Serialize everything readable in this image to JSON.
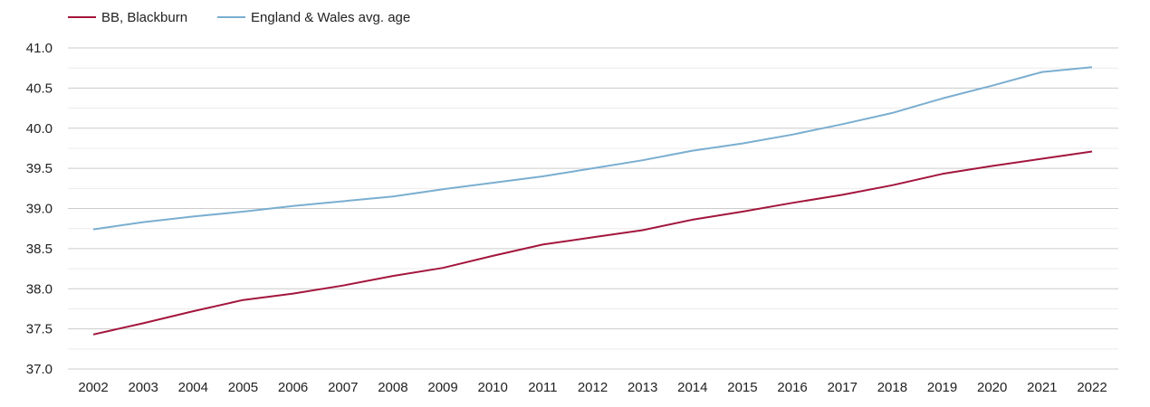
{
  "chart_data": {
    "type": "line",
    "title": "",
    "xlabel": "",
    "ylabel": "",
    "x": [
      "2002",
      "2003",
      "2004",
      "2005",
      "2006",
      "2007",
      "2008",
      "2009",
      "2010",
      "2011",
      "2012",
      "2013",
      "2014",
      "2015",
      "2016",
      "2017",
      "2018",
      "2019",
      "2020",
      "2021",
      "2022"
    ],
    "ylim": [
      37.0,
      41.0
    ],
    "y_ticks": [
      "37.0",
      "37.5",
      "38.0",
      "38.5",
      "39.0",
      "39.5",
      "40.0",
      "40.5",
      "41.0"
    ],
    "grid": "horizontal",
    "legend_position": "top-left",
    "series": [
      {
        "name": "BB, Blackburn",
        "color": "#a3163c",
        "values": [
          37.43,
          37.57,
          37.72,
          37.86,
          37.94,
          38.04,
          38.16,
          38.26,
          38.41,
          38.55,
          38.64,
          38.73,
          38.86,
          38.96,
          39.07,
          39.17,
          39.29,
          39.43,
          39.53,
          39.62,
          39.71
        ]
      },
      {
        "name": "England & Wales avg. age",
        "color": "#7aaed0",
        "values": [
          38.74,
          38.83,
          38.9,
          38.96,
          39.03,
          39.09,
          39.15,
          39.24,
          39.32,
          39.4,
          39.5,
          39.6,
          39.72,
          39.81,
          39.92,
          40.05,
          40.19,
          40.37,
          40.53,
          40.7,
          40.76
        ]
      }
    ]
  }
}
